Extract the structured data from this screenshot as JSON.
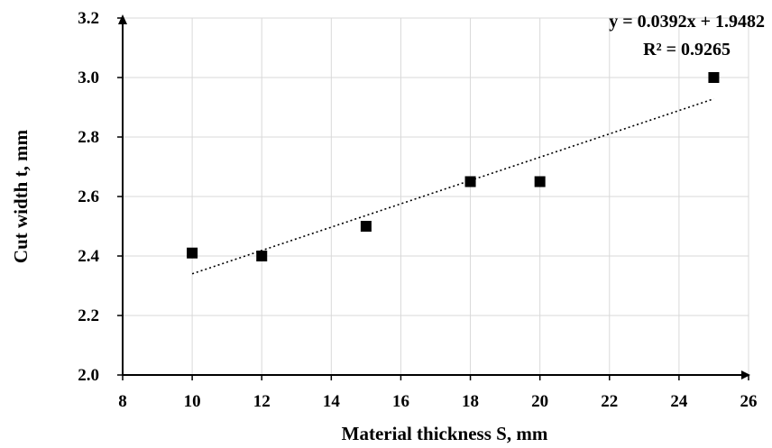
{
  "chart_data": {
    "type": "scatter",
    "xlabel": "Material thickness S, mm",
    "ylabel": "Cut width t, mm",
    "xlim": [
      8,
      26
    ],
    "ylim": [
      2.0,
      3.2
    ],
    "xticks": [
      "8",
      "10",
      "12",
      "14",
      "16",
      "18",
      "20",
      "22",
      "24",
      "26"
    ],
    "yticks": [
      "2.0",
      "2.2",
      "2.4",
      "2.6",
      "2.8",
      "3.0",
      "3.2"
    ],
    "grid": true,
    "series": [
      {
        "x": [
          10,
          12,
          15,
          18,
          20,
          25
        ],
        "y": [
          2.41,
          2.4,
          2.5,
          2.65,
          2.65,
          3.0
        ],
        "marker": "square",
        "color": "#000000"
      }
    ],
    "trendline": {
      "type": "linear",
      "slope": 0.0392,
      "intercept": 1.9482,
      "x_range": [
        10,
        25
      ],
      "style": "dotted"
    },
    "annotations": {
      "equation": "y = 0.0392x + 1.9482",
      "r_squared": "R² = 0.9265"
    }
  }
}
